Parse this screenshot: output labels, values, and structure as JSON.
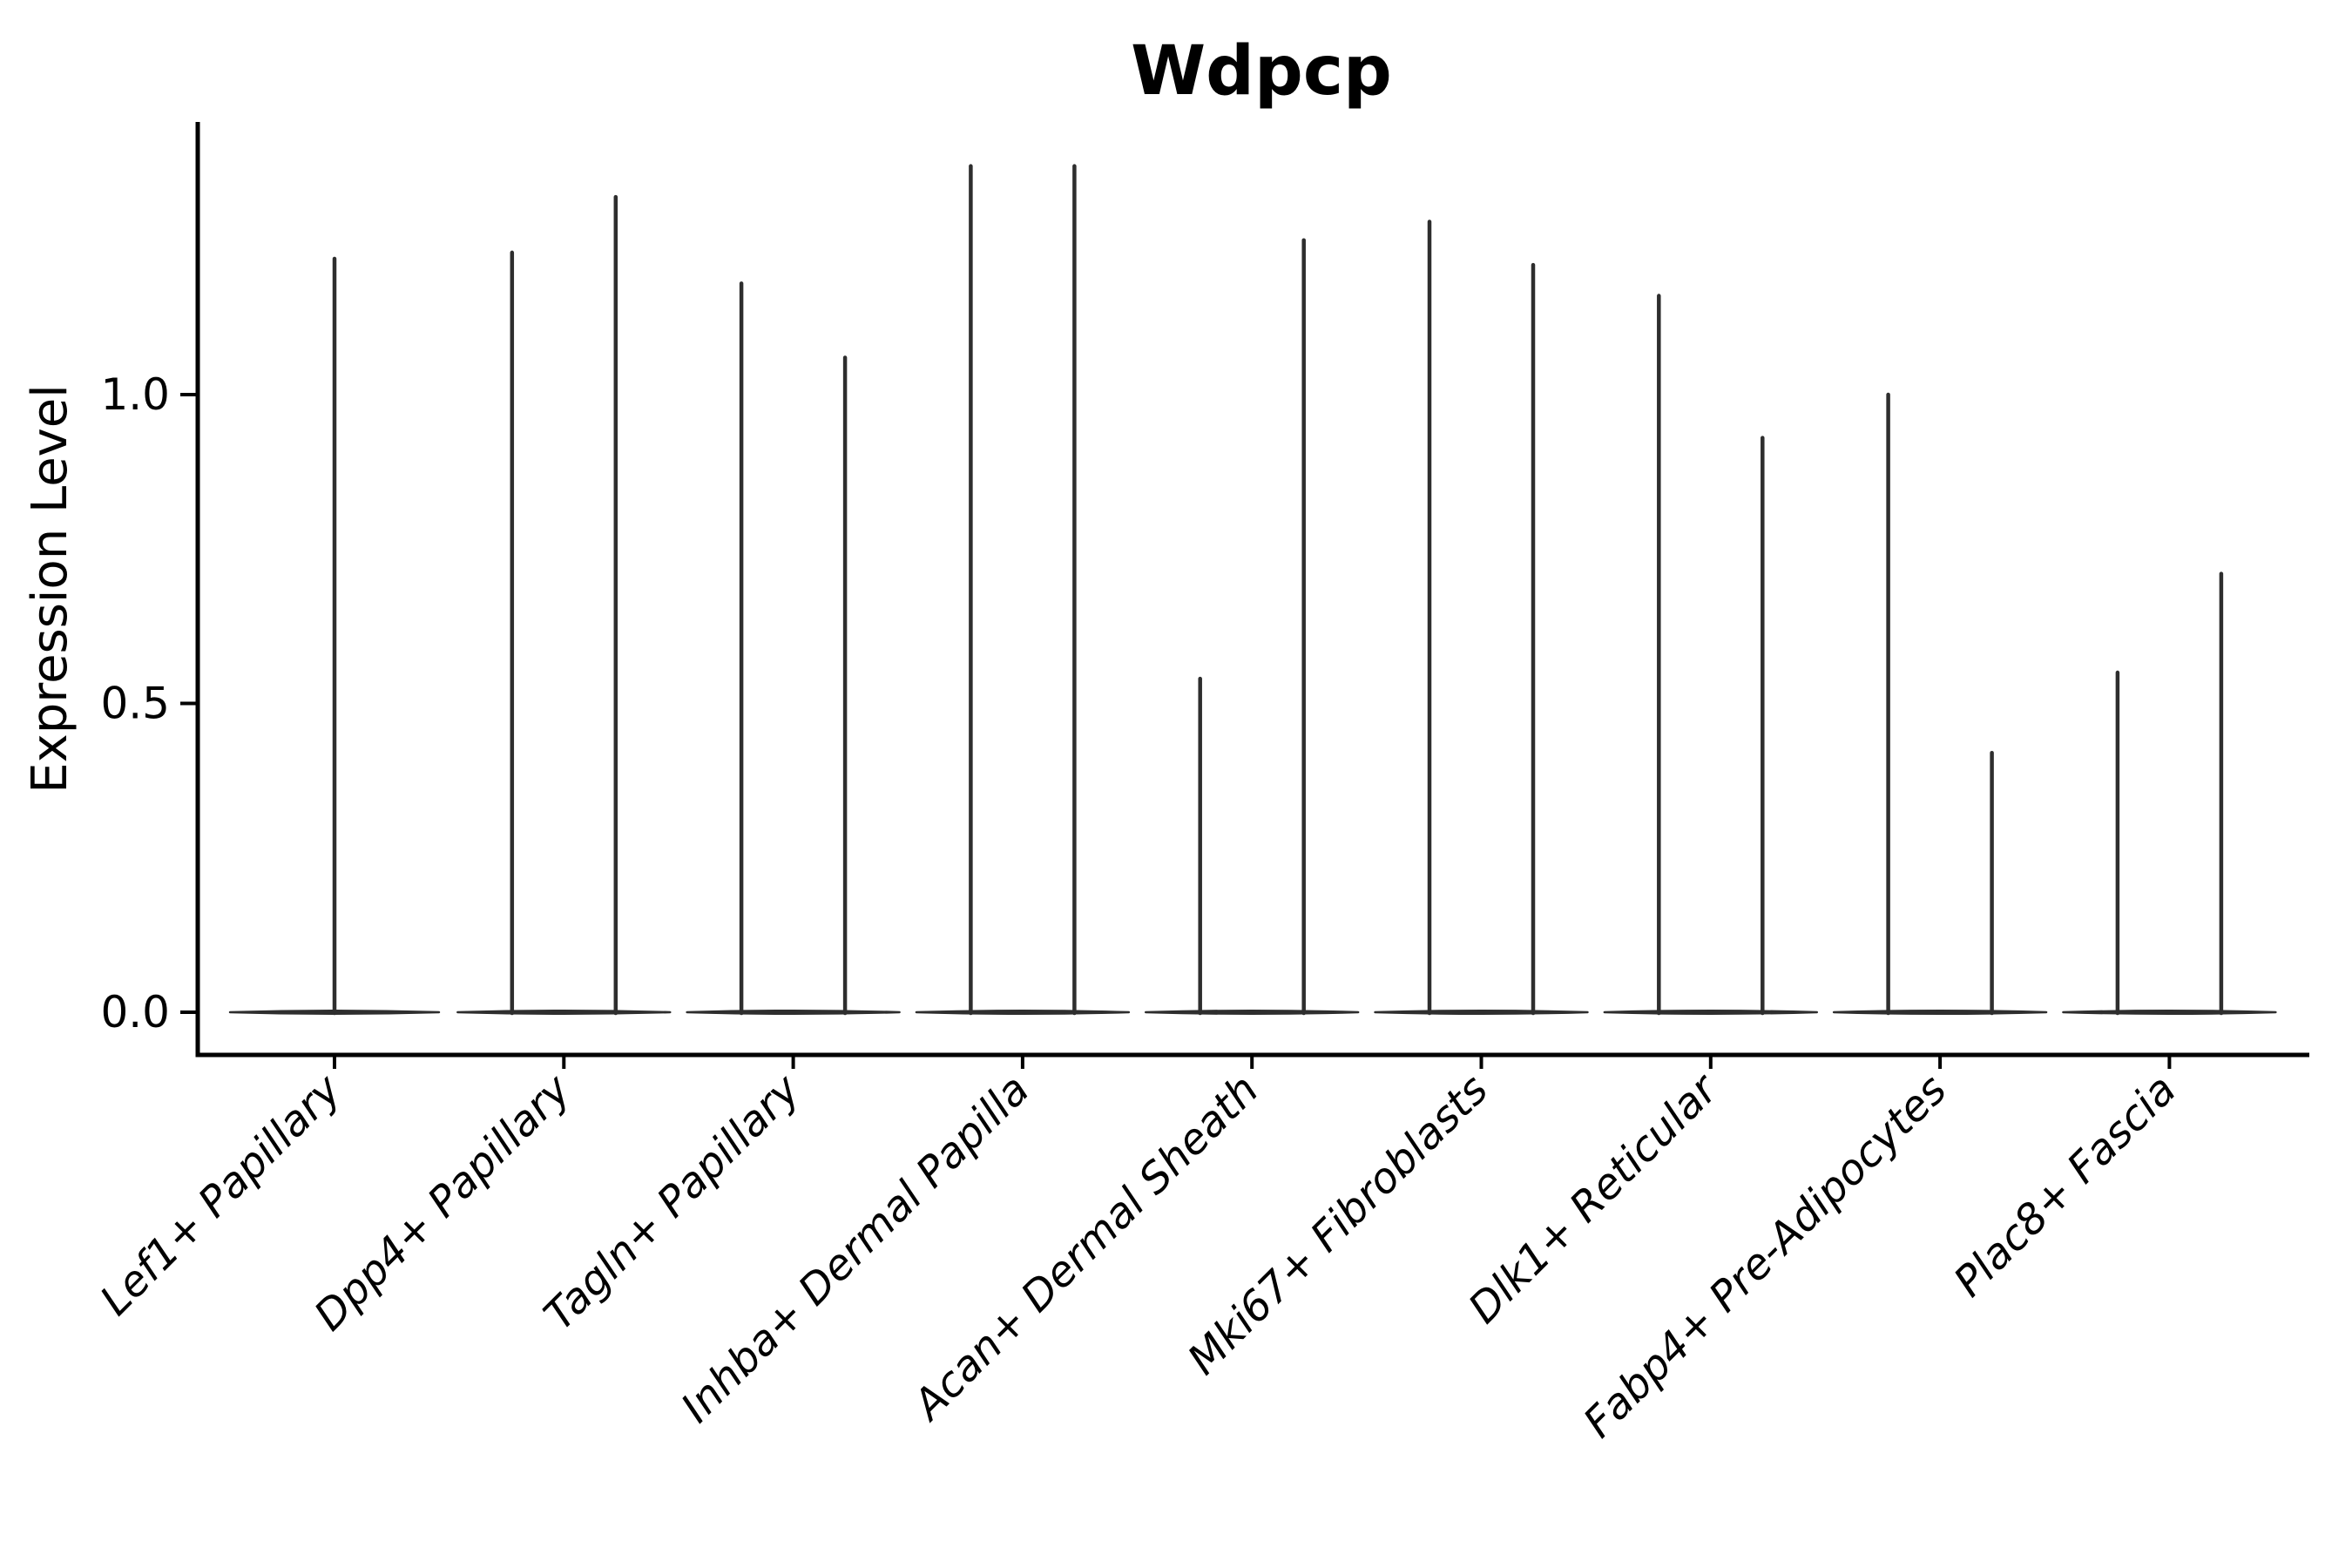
{
  "title": "Wdpcp",
  "y_axis": {
    "label": "Expression Level",
    "tick_labels": [
      "0.0",
      "0.5",
      "1.0"
    ]
  },
  "colors": {
    "violin": "#2e2e2e",
    "axis": "#000000",
    "text": "#000000",
    "background": "#ffffff"
  },
  "chart_data": {
    "type": "violin",
    "title": "Wdpcp",
    "xlabel": "",
    "ylabel": "Expression Level",
    "ylim": [
      -0.07,
      1.44
    ],
    "yticks": [
      0.0,
      0.5,
      1.0
    ],
    "ytick_labels": [
      "0.0",
      "0.5",
      "1.0"
    ],
    "grid": false,
    "legend": "none",
    "x_tick_rotation_deg": 45,
    "categories": [
      "Lef1+ Papillary",
      "Dpp4+ Papillary",
      "Tagln+ Papillary",
      "Inhba+ Dermal Papilla",
      "Acan+ Dermal Sheath",
      "Mki67+ Fibroblasts",
      "Dlk1+ Reticular",
      "Fabp4+ Pre-Adipocytes",
      "Plac8+ Fascia"
    ],
    "series": [
      {
        "category": "Lef1+ Papillary",
        "violin_max_expression": [
          1.22
        ]
      },
      {
        "category": "Dpp4+ Papillary",
        "violin_max_expression": [
          1.23,
          1.32
        ]
      },
      {
        "category": "Tagln+ Papillary",
        "violin_max_expression": [
          1.18,
          1.06
        ]
      },
      {
        "category": "Inhba+ Dermal Papilla",
        "violin_max_expression": [
          1.37,
          1.37
        ]
      },
      {
        "category": "Acan+ Dermal Sheath",
        "violin_max_expression": [
          0.54,
          1.25
        ]
      },
      {
        "category": "Mki67+ Fibroblasts",
        "violin_max_expression": [
          1.28,
          1.21
        ]
      },
      {
        "category": "Dlk1+ Reticular",
        "violin_max_expression": [
          1.16,
          0.93
        ]
      },
      {
        "category": "Fabp4+ Pre-Adipocytes",
        "violin_max_expression": [
          1.0,
          0.42
        ]
      },
      {
        "category": "Plac8+ Fascia",
        "violin_max_expression": [
          0.55,
          0.71
        ]
      }
    ],
    "violin_shape_note": "Each violin has nearly all density at expression 0 (wide flat base on the zero line) with an extremely thin vertical spike reaching the listed maximum expression value."
  }
}
